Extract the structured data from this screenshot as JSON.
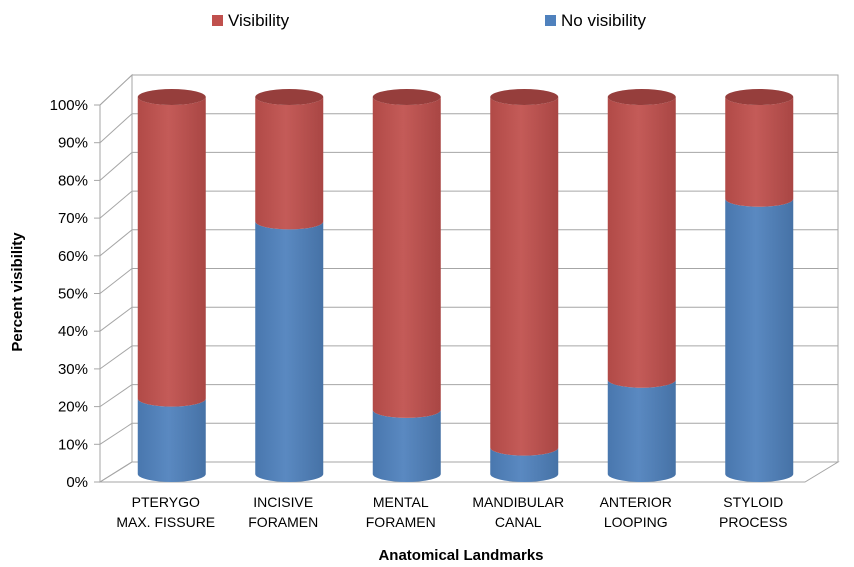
{
  "chart_data": {
    "type": "bar",
    "stacked": true,
    "percent_stacked": true,
    "style": "3d-cylinder",
    "categories": [
      [
        "PTERYGO",
        "MAX. FISSURE"
      ],
      [
        "INCISIVE",
        "FORAMEN"
      ],
      [
        "MENTAL",
        "FORAMEN"
      ],
      [
        "MANDIBULAR",
        "CANAL"
      ],
      [
        "ANTERIOR",
        "LOOPING"
      ],
      [
        "STYLOID",
        "PROCESS"
      ]
    ],
    "series": [
      {
        "name": "No visibility",
        "color": "#4f81bd",
        "values": [
          20,
          67,
          17,
          7,
          25,
          73
        ]
      },
      {
        "name": "Visibility",
        "color": "#c0504d",
        "values": [
          80,
          33,
          83,
          93,
          75,
          27
        ]
      }
    ],
    "xlabel": "Anatomical Landmarks",
    "ylabel": "Percent visibility",
    "ylim": [
      0,
      100
    ],
    "yticks": [
      "0%",
      "10%",
      "20%",
      "30%",
      "40%",
      "50%",
      "60%",
      "70%",
      "80%",
      "90%",
      "100%"
    ],
    "grid": true,
    "legend": {
      "position": "top",
      "entries": [
        "Visibility",
        "No visibility"
      ]
    }
  }
}
